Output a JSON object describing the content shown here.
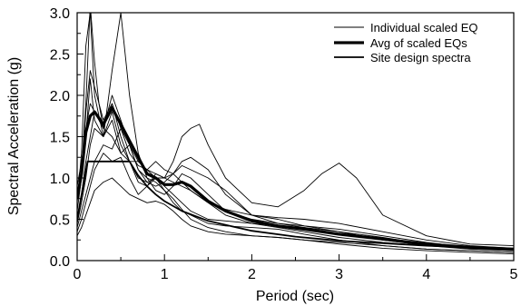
{
  "chart_data": {
    "type": "line",
    "xlabel": "Period (sec)",
    "ylabel": "Spectral Acceleration (g)",
    "xlim": [
      0,
      5
    ],
    "ylim": [
      0,
      3
    ],
    "x_ticks": [
      "0",
      "1",
      "2",
      "3",
      "4",
      "5"
    ],
    "y_ticks": [
      "0.0",
      "0.5",
      "1.0",
      "1.5",
      "2.0",
      "2.5",
      "3.0"
    ],
    "grid": false,
    "legend_position": "top-right",
    "legend": [
      {
        "label": "Individual scaled EQ",
        "style": "thin"
      },
      {
        "label": "Avg of scaled EQs",
        "style": "thick"
      },
      {
        "label": "Site design spectra",
        "style": "medium"
      }
    ],
    "series": [
      {
        "role": "individual",
        "x": [
          0,
          0.05,
          0.1,
          0.15,
          0.2,
          0.25,
          0.3,
          0.4,
          0.5,
          0.6,
          0.7,
          0.8,
          0.9,
          1.0,
          1.1,
          1.2,
          1.3,
          1.4,
          1.5,
          1.7,
          2.0,
          2.3,
          2.6,
          2.8,
          3.0,
          3.2,
          3.5,
          4.0,
          4.5,
          5.0
        ],
        "values": [
          0.75,
          1.1,
          1.9,
          3.1,
          2.4,
          1.9,
          1.6,
          1.9,
          1.5,
          1.2,
          0.95,
          0.9,
          1.05,
          1.0,
          1.2,
          1.5,
          1.6,
          1.65,
          1.4,
          1.0,
          0.7,
          0.65,
          0.85,
          1.05,
          1.18,
          1.0,
          0.55,
          0.3,
          0.2,
          0.18
        ]
      },
      {
        "role": "individual",
        "x": [
          0,
          0.05,
          0.1,
          0.15,
          0.2,
          0.3,
          0.4,
          0.5,
          0.6,
          0.7,
          0.8,
          0.9,
          1.0,
          1.1,
          1.2,
          1.3,
          1.5,
          1.7,
          2.0,
          2.3,
          2.6,
          3.0,
          3.5,
          4.0,
          4.5,
          5.0
        ],
        "values": [
          0.7,
          1.3,
          2.6,
          3.0,
          2.0,
          1.5,
          2.3,
          3.0,
          2.0,
          1.3,
          1.0,
          0.85,
          0.8,
          0.9,
          1.05,
          1.0,
          0.8,
          0.6,
          0.5,
          0.45,
          0.42,
          0.35,
          0.25,
          0.2,
          0.15,
          0.13
        ]
      },
      {
        "role": "individual",
        "x": [
          0,
          0.05,
          0.1,
          0.15,
          0.2,
          0.3,
          0.4,
          0.5,
          0.6,
          0.7,
          0.8,
          0.9,
          1.0,
          1.1,
          1.2,
          1.3,
          1.5,
          1.7,
          2.0,
          2.3,
          2.6,
          3.0,
          3.5,
          4.0,
          4.5,
          5.0
        ],
        "values": [
          0.6,
          1.0,
          1.8,
          2.3,
          2.1,
          1.7,
          1.9,
          1.6,
          1.4,
          1.1,
          0.95,
          0.9,
          0.95,
          1.05,
          1.2,
          1.25,
          1.1,
          0.8,
          0.55,
          0.5,
          0.42,
          0.38,
          0.3,
          0.22,
          0.16,
          0.14
        ]
      },
      {
        "role": "individual",
        "x": [
          0,
          0.05,
          0.1,
          0.15,
          0.2,
          0.3,
          0.4,
          0.5,
          0.6,
          0.7,
          0.8,
          0.9,
          1.0,
          1.1,
          1.2,
          1.3,
          1.5,
          1.7,
          2.0,
          2.3,
          2.6,
          3.0,
          3.5,
          4.0,
          4.5,
          5.0
        ],
        "values": [
          0.5,
          0.8,
          1.2,
          1.5,
          1.8,
          1.6,
          1.5,
          1.3,
          1.2,
          1.2,
          1.1,
          1.0,
          0.9,
          0.8,
          0.7,
          0.6,
          0.5,
          0.48,
          0.45,
          0.42,
          0.4,
          0.35,
          0.28,
          0.2,
          0.15,
          0.13
        ]
      },
      {
        "role": "individual",
        "x": [
          0,
          0.05,
          0.1,
          0.15,
          0.2,
          0.3,
          0.4,
          0.5,
          0.6,
          0.7,
          0.8,
          0.9,
          1.0,
          1.1,
          1.2,
          1.3,
          1.5,
          1.7,
          2.0,
          2.3,
          2.6,
          3.0,
          3.5,
          4.0,
          4.5,
          5.0
        ],
        "values": [
          0.4,
          0.6,
          0.8,
          1.0,
          1.2,
          1.4,
          1.35,
          1.6,
          1.3,
          1.15,
          1.1,
          1.2,
          1.1,
          1.05,
          0.95,
          0.85,
          0.7,
          0.62,
          0.55,
          0.52,
          0.5,
          0.45,
          0.35,
          0.25,
          0.18,
          0.15
        ]
      },
      {
        "role": "individual",
        "x": [
          0,
          0.05,
          0.1,
          0.15,
          0.2,
          0.3,
          0.4,
          0.5,
          0.6,
          0.7,
          0.8,
          0.9,
          1.0,
          1.1,
          1.2,
          1.3,
          1.5,
          1.7,
          2.0,
          2.3,
          2.6,
          3.0,
          3.5,
          4.0,
          4.5,
          5.0
        ],
        "values": [
          0.35,
          0.5,
          0.7,
          0.9,
          1.1,
          1.3,
          1.2,
          1.25,
          1.0,
          0.8,
          0.9,
          1.0,
          0.85,
          0.7,
          0.6,
          0.55,
          0.45,
          0.42,
          0.4,
          0.38,
          0.32,
          0.25,
          0.18,
          0.14,
          0.12,
          0.1
        ]
      },
      {
        "role": "individual",
        "x": [
          0,
          0.05,
          0.1,
          0.15,
          0.2,
          0.3,
          0.4,
          0.5,
          0.6,
          0.7,
          0.8,
          0.9,
          1.0,
          1.1,
          1.2,
          1.3,
          1.5,
          1.7,
          2.0,
          2.3,
          2.6,
          3.0,
          3.5,
          4.0,
          4.5,
          5.0
        ],
        "values": [
          0.9,
          1.2,
          1.5,
          2.2,
          1.7,
          1.5,
          1.8,
          1.4,
          1.2,
          1.0,
          0.95,
          1.0,
          1.0,
          1.05,
          1.15,
          1.1,
          1.0,
          0.85,
          0.55,
          0.45,
          0.4,
          0.32,
          0.25,
          0.18,
          0.14,
          0.12
        ]
      },
      {
        "role": "individual",
        "x": [
          0,
          0.05,
          0.1,
          0.15,
          0.2,
          0.3,
          0.4,
          0.5,
          0.6,
          0.7,
          0.8,
          0.9,
          1.0,
          1.1,
          1.2,
          1.3,
          1.5,
          1.7,
          2.0,
          2.3,
          2.6,
          3.0,
          3.5,
          4.0,
          4.5,
          5.0
        ],
        "values": [
          0.45,
          0.7,
          1.0,
          1.4,
          1.6,
          1.5,
          1.7,
          1.3,
          1.4,
          1.1,
          1.0,
          0.95,
          0.85,
          0.75,
          0.62,
          0.5,
          0.4,
          0.35,
          0.3,
          0.28,
          0.25,
          0.2,
          0.15,
          0.12,
          0.1,
          0.08
        ]
      },
      {
        "role": "individual",
        "x": [
          0,
          0.05,
          0.1,
          0.15,
          0.2,
          0.3,
          0.4,
          0.5,
          0.6,
          0.7,
          0.8,
          0.9,
          1.0,
          1.1,
          1.2,
          1.3,
          1.5,
          1.7,
          2.0,
          2.3,
          2.6,
          3.0,
          3.5,
          4.0,
          4.5,
          5.0
        ],
        "values": [
          0.3,
          0.4,
          0.55,
          0.7,
          0.85,
          0.95,
          1.0,
          0.9,
          0.8,
          0.75,
          0.7,
          0.72,
          0.68,
          0.6,
          0.5,
          0.42,
          0.35,
          0.32,
          0.3,
          0.28,
          0.25,
          0.22,
          0.18,
          0.14,
          0.12,
          0.1
        ]
      },
      {
        "role": "individual",
        "x": [
          0,
          0.05,
          0.1,
          0.15,
          0.2,
          0.3,
          0.4,
          0.5,
          0.6,
          0.7,
          0.8,
          0.9,
          1.0,
          1.1,
          1.2,
          1.3,
          1.5,
          1.7,
          2.0,
          2.3,
          2.6,
          3.0,
          3.5,
          4.0,
          4.5,
          5.0
        ],
        "values": [
          0.8,
          1.0,
          1.6,
          1.9,
          1.8,
          1.6,
          2.0,
          1.7,
          1.4,
          1.2,
          1.1,
          1.05,
          1.0,
          0.95,
          0.9,
          0.85,
          0.7,
          0.55,
          0.45,
          0.4,
          0.35,
          0.28,
          0.22,
          0.18,
          0.15,
          0.12
        ]
      },
      {
        "role": "average",
        "x": [
          0,
          0.05,
          0.1,
          0.15,
          0.2,
          0.3,
          0.4,
          0.5,
          0.6,
          0.7,
          0.8,
          0.9,
          1.0,
          1.1,
          1.2,
          1.3,
          1.5,
          1.7,
          2.0,
          2.3,
          2.6,
          3.0,
          3.5,
          4.0,
          4.5,
          5.0
        ],
        "values": [
          0.75,
          1.05,
          1.55,
          1.75,
          1.8,
          1.65,
          1.85,
          1.65,
          1.45,
          1.25,
          1.05,
          1.0,
          0.92,
          0.92,
          0.95,
          0.9,
          0.72,
          0.6,
          0.48,
          0.42,
          0.38,
          0.32,
          0.26,
          0.2,
          0.16,
          0.14
        ]
      },
      {
        "role": "design",
        "x": [
          0,
          0.12,
          0.6,
          0.7,
          0.8,
          0.9,
          1.0,
          1.2,
          1.5,
          2.0,
          2.5,
          3.0,
          3.5,
          4.0,
          4.5,
          5.0
        ],
        "values": [
          0.5,
          1.2,
          1.2,
          1.03,
          0.9,
          0.8,
          0.72,
          0.6,
          0.48,
          0.36,
          0.29,
          0.24,
          0.21,
          0.18,
          0.16,
          0.14
        ]
      }
    ]
  }
}
